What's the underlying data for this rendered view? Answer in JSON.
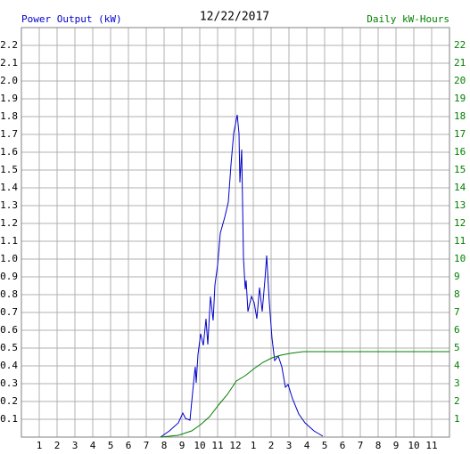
{
  "chart_data": {
    "type": "line",
    "title": "12/22/2017",
    "ylabel": "Power Output (kW)",
    "y2label": "Daily kW-Hours",
    "xlim": [
      0,
      24
    ],
    "xticks": [
      1,
      2,
      3,
      4,
      5,
      6,
      7,
      8,
      9,
      10,
      11,
      12,
      {
        "value": 13,
        "label": "1"
      },
      {
        "value": 14,
        "label": "2"
      },
      {
        "value": 15,
        "label": "3"
      },
      {
        "value": 16,
        "label": "4"
      },
      {
        "value": 17,
        "label": "5"
      },
      {
        "value": 18,
        "label": "6"
      },
      {
        "value": 19,
        "label": "7"
      },
      {
        "value": 20,
        "label": "8"
      },
      {
        "value": 21,
        "label": "9"
      },
      {
        "value": 22,
        "label": "10"
      },
      {
        "value": 23,
        "label": "11"
      }
    ],
    "ylim": [
      0,
      2.3
    ],
    "yticks": [
      0.1,
      0.2,
      0.3,
      0.4,
      0.5,
      0.6,
      0.7,
      0.8,
      0.9,
      {
        "value": 1.0,
        "label": "1.0"
      },
      1.1,
      1.2,
      1.3,
      1.4,
      1.5,
      1.6,
      1.7,
      1.8,
      1.9,
      {
        "value": 2.0,
        "label": "2.0"
      },
      2.1,
      2.2
    ],
    "y2lim": [
      0,
      23
    ],
    "y2ticks": [
      1,
      2,
      3,
      4,
      5,
      6,
      7,
      8,
      9,
      10,
      11,
      12,
      13,
      14,
      15,
      16,
      17,
      18,
      19,
      20,
      21,
      22
    ],
    "grid": true,
    "series": [
      {
        "color": "#0000cc",
        "x": [
          7.8,
          8.3,
          8.8,
          9.05,
          9.2,
          9.45,
          9.7,
          9.75,
          9.8,
          9.9,
          10.05,
          10.2,
          10.35,
          10.45,
          10.6,
          10.75,
          10.85,
          11.0,
          11.15,
          11.4,
          11.6,
          11.75,
          11.9,
          12.1,
          12.2,
          12.25,
          12.35,
          12.45,
          12.55,
          12.6,
          12.7,
          12.9,
          13.05,
          13.2,
          13.35,
          13.5,
          13.65,
          13.75,
          13.9,
          14.05,
          14.2,
          14.4,
          14.6,
          14.8,
          14.95,
          15.2,
          15.55,
          15.9,
          16.4,
          16.9
        ],
        "values": [
          0,
          0.035,
          0.08,
          0.135,
          0.105,
          0.095,
          0.355,
          0.395,
          0.305,
          0.465,
          0.58,
          0.515,
          0.665,
          0.52,
          0.79,
          0.655,
          0.855,
          0.965,
          1.145,
          1.235,
          1.32,
          1.53,
          1.705,
          1.81,
          1.705,
          1.43,
          1.615,
          1.005,
          0.83,
          0.88,
          0.705,
          0.79,
          0.755,
          0.665,
          0.84,
          0.705,
          0.88,
          1.02,
          0.755,
          0.555,
          0.43,
          0.455,
          0.395,
          0.28,
          0.295,
          0.215,
          0.13,
          0.08,
          0.035,
          0.005
        ]
      },
      {
        "color": "#008000",
        "axis": "y2",
        "x": [
          7.8,
          8.8,
          9.55,
          10.05,
          10.55,
          11.05,
          11.55,
          12.05,
          12.55,
          13.05,
          13.55,
          14.05,
          14.55,
          15.05,
          15.8,
          16.8,
          24
        ],
        "values": [
          0,
          0.1,
          0.35,
          0.7,
          1.15,
          1.8,
          2.4,
          3.15,
          3.45,
          3.85,
          4.2,
          4.45,
          4.6,
          4.7,
          4.8,
          4.8,
          4.8
        ]
      }
    ]
  }
}
